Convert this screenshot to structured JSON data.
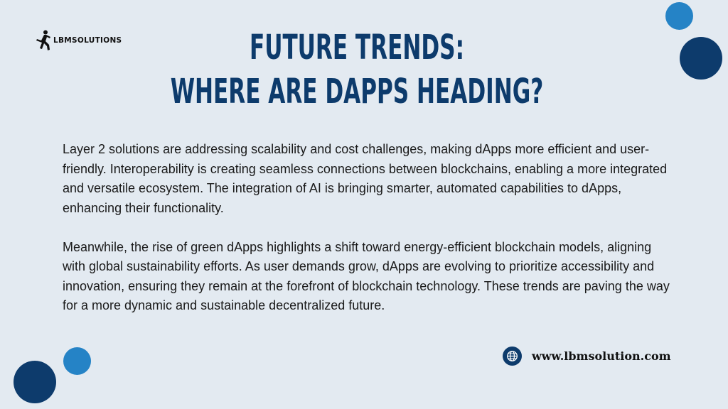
{
  "logo": {
    "text": "LBMSOLUTIONS"
  },
  "title": {
    "line1": "FUTURE TRENDS:",
    "line2": "WHERE ARE DAPPS HEADING?"
  },
  "body": {
    "paragraph1": "Layer 2 solutions are addressing scalability and cost challenges, making dApps more efficient and user-friendly. Interoperability is creating seamless connections between blockchains, enabling a more integrated and versatile ecosystem. The integration of AI is bringing smarter, automated capabilities to dApps, enhancing their functionality.",
    "paragraph2": "Meanwhile, the rise of green dApps highlights a shift toward energy-efficient blockchain models, aligning with global sustainability efforts. As user demands grow, dApps are evolving to prioritize accessibility and innovation, ensuring they remain at the forefront of blockchain technology. These trends are paving the way for a more dynamic and sustainable decentralized future."
  },
  "footer": {
    "icon": "globe-icon",
    "website": "www.lbmsolution.com"
  },
  "colors": {
    "background": "#e3eaf1",
    "primary_dark": "#0d3b6c",
    "accent_light": "#2583c6"
  }
}
